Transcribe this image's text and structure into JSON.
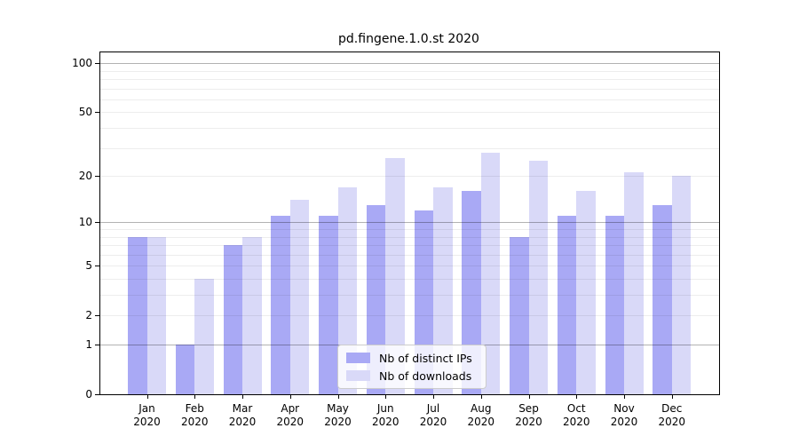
{
  "chart_data": {
    "type": "bar",
    "title": "pd.fingene.1.0.st 2020",
    "xlabel": "",
    "ylabel": "",
    "categories": [
      "Jan",
      "Feb",
      "Mar",
      "Apr",
      "May",
      "Jun",
      "Jul",
      "Aug",
      "Sep",
      "Oct",
      "Nov",
      "Dec"
    ],
    "year": "2020",
    "series": [
      {
        "name": "Nb of distinct IPs",
        "color": "#a9a9f5",
        "values": [
          8,
          1,
          7,
          11,
          11,
          13,
          12,
          16,
          8,
          11,
          11,
          13
        ]
      },
      {
        "name": "Nb of downloads",
        "color": "#d9d9f8",
        "values": [
          8,
          4,
          8,
          14,
          17,
          26,
          17,
          28,
          25,
          16,
          21,
          20
        ]
      }
    ],
    "yscale": "log10(x+1)",
    "ylim": [
      0,
      117
    ],
    "yticks": [
      0,
      1,
      2,
      5,
      10,
      20,
      50,
      100
    ],
    "major_gridlines": [
      1,
      10,
      100
    ],
    "minor_gridlines": [
      2,
      3,
      4,
      5,
      6,
      7,
      8,
      9,
      20,
      30,
      40,
      50,
      60,
      70,
      80,
      90
    ],
    "grid": "horizontal",
    "legend_position": "inside-bottom-center"
  }
}
